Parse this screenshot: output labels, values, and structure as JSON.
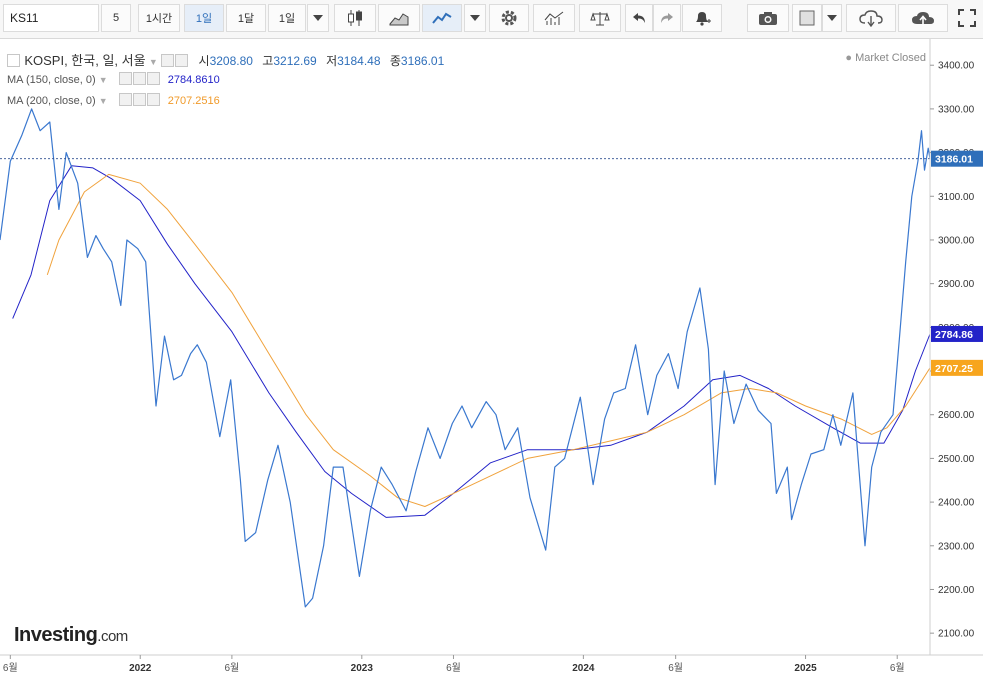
{
  "toolbar": {
    "symbol": "KS11",
    "interval_buttons": [
      "5",
      "1시간",
      "1일",
      "1달",
      "1일"
    ],
    "active_interval": "1일"
  },
  "legend": {
    "name": "KOSPI, 한국, 일, 서울",
    "open_label": "시",
    "open": "3208.80",
    "high_label": "고",
    "high": "3212.69",
    "low_label": "저",
    "low": "3184.48",
    "close_label": "종",
    "close": "3186.01",
    "ma150_label": "MA (150, close, 0)",
    "ma150_value": "2784.8610",
    "ma200_label": "MA (200, close, 0)",
    "ma200_value": "2707.2516"
  },
  "market_status": "Market Closed",
  "logo": {
    "main": "Investing",
    "suffix": ".com"
  },
  "colors": {
    "price": "#3a78cf",
    "ma150": "#2323c8",
    "ma200": "#f0a23c",
    "last_price_tag": "#2f6fba"
  },
  "chart_data": {
    "type": "line",
    "ylim": [
      2050,
      3460
    ],
    "yticks": [
      2100,
      2200,
      2300,
      2400,
      2500,
      2600,
      2700,
      2800,
      2900,
      3000,
      3100,
      3200,
      3300,
      3400
    ],
    "ytick_labels": [
      "2100.00",
      "2200.00",
      "2300.00",
      "2400.00",
      "2500.00",
      "2600.00",
      "2700.00",
      "2800.00",
      "2900.00",
      "3000.00",
      "3100.00",
      "3200.00",
      "3300.00",
      "3400.00"
    ],
    "x_range": [
      "2021-05-15",
      "2025-07-25"
    ],
    "xticks": [
      {
        "date": "2021-06-01",
        "label": "6월",
        "year": false
      },
      {
        "date": "2022-01-01",
        "label": "2022",
        "year": true
      },
      {
        "date": "2022-06-01",
        "label": "6월",
        "year": false
      },
      {
        "date": "2023-01-01",
        "label": "2023",
        "year": true
      },
      {
        "date": "2023-06-01",
        "label": "6월",
        "year": false
      },
      {
        "date": "2024-01-01",
        "label": "2024",
        "year": true
      },
      {
        "date": "2024-06-01",
        "label": "6월",
        "year": false
      },
      {
        "date": "2025-01-01",
        "label": "2025",
        "year": true
      },
      {
        "date": "2025-06-01",
        "label": "6월",
        "year": false
      }
    ],
    "last_price": {
      "value": 3186.01,
      "label": "3186.01"
    },
    "series": [
      {
        "name": "KOSPI",
        "points": [
          [
            "2021-05-15",
            3000
          ],
          [
            "2021-06-01",
            3180
          ],
          [
            "2021-06-20",
            3240
          ],
          [
            "2021-07-06",
            3300
          ],
          [
            "2021-07-20",
            3250
          ],
          [
            "2021-08-05",
            3270
          ],
          [
            "2021-08-20",
            3070
          ],
          [
            "2021-09-01",
            3200
          ],
          [
            "2021-09-20",
            3130
          ],
          [
            "2021-10-06",
            2960
          ],
          [
            "2021-10-20",
            3010
          ],
          [
            "2021-11-01",
            2980
          ],
          [
            "2021-11-15",
            2950
          ],
          [
            "2021-11-30",
            2850
          ],
          [
            "2021-12-10",
            3000
          ],
          [
            "2021-12-28",
            2980
          ],
          [
            "2022-01-10",
            2950
          ],
          [
            "2022-01-27",
            2620
          ],
          [
            "2022-02-10",
            2780
          ],
          [
            "2022-02-25",
            2680
          ],
          [
            "2022-03-10",
            2690
          ],
          [
            "2022-03-25",
            2740
          ],
          [
            "2022-04-05",
            2760
          ],
          [
            "2022-04-20",
            2720
          ],
          [
            "2022-05-12",
            2550
          ],
          [
            "2022-05-30",
            2680
          ],
          [
            "2022-06-15",
            2450
          ],
          [
            "2022-06-23",
            2310
          ],
          [
            "2022-07-10",
            2330
          ],
          [
            "2022-07-30",
            2450
          ],
          [
            "2022-08-16",
            2530
          ],
          [
            "2022-09-05",
            2400
          ],
          [
            "2022-09-30",
            2160
          ],
          [
            "2022-10-12",
            2180
          ],
          [
            "2022-10-30",
            2300
          ],
          [
            "2022-11-15",
            2480
          ],
          [
            "2022-12-01",
            2480
          ],
          [
            "2022-12-28",
            2230
          ],
          [
            "2023-01-15",
            2380
          ],
          [
            "2023-02-02",
            2480
          ],
          [
            "2023-02-20",
            2440
          ],
          [
            "2023-03-15",
            2380
          ],
          [
            "2023-03-31",
            2470
          ],
          [
            "2023-04-20",
            2570
          ],
          [
            "2023-05-10",
            2500
          ],
          [
            "2023-05-30",
            2580
          ],
          [
            "2023-06-15",
            2620
          ],
          [
            "2023-07-01",
            2570
          ],
          [
            "2023-07-25",
            2630
          ],
          [
            "2023-08-10",
            2600
          ],
          [
            "2023-08-25",
            2520
          ],
          [
            "2023-09-15",
            2570
          ],
          [
            "2023-10-05",
            2410
          ],
          [
            "2023-10-31",
            2290
          ],
          [
            "2023-11-15",
            2480
          ],
          [
            "2023-12-01",
            2500
          ],
          [
            "2023-12-27",
            2640
          ],
          [
            "2024-01-17",
            2440
          ],
          [
            "2024-02-05",
            2590
          ],
          [
            "2024-02-20",
            2650
          ],
          [
            "2024-03-10",
            2660
          ],
          [
            "2024-03-27",
            2760
          ],
          [
            "2024-04-16",
            2600
          ],
          [
            "2024-05-01",
            2690
          ],
          [
            "2024-05-20",
            2740
          ],
          [
            "2024-06-05",
            2660
          ],
          [
            "2024-06-20",
            2790
          ],
          [
            "2024-07-11",
            2890
          ],
          [
            "2024-07-25",
            2750
          ],
          [
            "2024-08-05",
            2440
          ],
          [
            "2024-08-20",
            2700
          ],
          [
            "2024-09-05",
            2580
          ],
          [
            "2024-09-25",
            2670
          ],
          [
            "2024-10-15",
            2610
          ],
          [
            "2024-11-05",
            2580
          ],
          [
            "2024-11-14",
            2420
          ],
          [
            "2024-12-02",
            2480
          ],
          [
            "2024-12-09",
            2360
          ],
          [
            "2024-12-25",
            2440
          ],
          [
            "2025-01-10",
            2510
          ],
          [
            "2025-01-31",
            2520
          ],
          [
            "2025-02-15",
            2600
          ],
          [
            "2025-02-28",
            2530
          ],
          [
            "2025-03-20",
            2650
          ],
          [
            "2025-04-09",
            2300
          ],
          [
            "2025-04-20",
            2480
          ],
          [
            "2025-05-05",
            2560
          ],
          [
            "2025-05-25",
            2600
          ],
          [
            "2025-06-05",
            2780
          ],
          [
            "2025-06-15",
            2950
          ],
          [
            "2025-06-25",
            3100
          ],
          [
            "2025-07-05",
            3180
          ],
          [
            "2025-07-11",
            3250
          ],
          [
            "2025-07-16",
            3160
          ],
          [
            "2025-07-22",
            3210
          ],
          [
            "2025-07-25",
            3186.01
          ]
        ]
      },
      {
        "name": "MA (150, close, 0)",
        "points": [
          [
            "2021-06-05",
            2820
          ],
          [
            "2021-07-05",
            2920
          ],
          [
            "2021-08-05",
            3090
          ],
          [
            "2021-09-10",
            3170
          ],
          [
            "2021-10-15",
            3165
          ],
          [
            "2021-11-15",
            3140
          ],
          [
            "2022-01-01",
            3090
          ],
          [
            "2022-02-15",
            2990
          ],
          [
            "2022-04-01",
            2900
          ],
          [
            "2022-06-01",
            2790
          ],
          [
            "2022-08-01",
            2650
          ],
          [
            "2022-09-15",
            2560
          ],
          [
            "2022-11-01",
            2470
          ],
          [
            "2022-12-15",
            2420
          ],
          [
            "2023-02-10",
            2365
          ],
          [
            "2023-04-15",
            2370
          ],
          [
            "2023-06-01",
            2420
          ],
          [
            "2023-08-01",
            2490
          ],
          [
            "2023-10-01",
            2520
          ],
          [
            "2023-12-15",
            2520
          ],
          [
            "2024-02-15",
            2530
          ],
          [
            "2024-04-15",
            2560
          ],
          [
            "2024-06-15",
            2620
          ],
          [
            "2024-08-01",
            2680
          ],
          [
            "2024-09-15",
            2690
          ],
          [
            "2024-11-01",
            2660
          ],
          [
            "2024-12-15",
            2620
          ],
          [
            "2025-02-15",
            2570
          ],
          [
            "2025-04-01",
            2535
          ],
          [
            "2025-05-10",
            2535
          ],
          [
            "2025-06-10",
            2610
          ],
          [
            "2025-07-01",
            2700
          ],
          [
            "2025-07-25",
            2784.86
          ]
        ]
      },
      {
        "name": "MA (200, close, 0)",
        "points": [
          [
            "2021-08-01",
            2920
          ],
          [
            "2021-08-20",
            3000
          ],
          [
            "2021-10-01",
            3110
          ],
          [
            "2021-11-10",
            3150
          ],
          [
            "2022-01-01",
            3130
          ],
          [
            "2022-02-15",
            3070
          ],
          [
            "2022-04-01",
            2990
          ],
          [
            "2022-06-01",
            2880
          ],
          [
            "2022-08-01",
            2740
          ],
          [
            "2022-10-01",
            2600
          ],
          [
            "2022-11-15",
            2520
          ],
          [
            "2023-01-15",
            2460
          ],
          [
            "2023-03-01",
            2410
          ],
          [
            "2023-04-15",
            2390
          ],
          [
            "2023-06-01",
            2420
          ],
          [
            "2023-08-01",
            2460
          ],
          [
            "2023-10-01",
            2500
          ],
          [
            "2023-12-15",
            2520
          ],
          [
            "2024-02-15",
            2540
          ],
          [
            "2024-04-15",
            2560
          ],
          [
            "2024-06-15",
            2600
          ],
          [
            "2024-08-15",
            2650
          ],
          [
            "2024-10-01",
            2660
          ],
          [
            "2024-11-15",
            2650
          ],
          [
            "2025-01-01",
            2620
          ],
          [
            "2025-03-01",
            2590
          ],
          [
            "2025-04-20",
            2555
          ],
          [
            "2025-05-15",
            2570
          ],
          [
            "2025-06-15",
            2620
          ],
          [
            "2025-07-25",
            2707.25
          ]
        ]
      }
    ]
  }
}
